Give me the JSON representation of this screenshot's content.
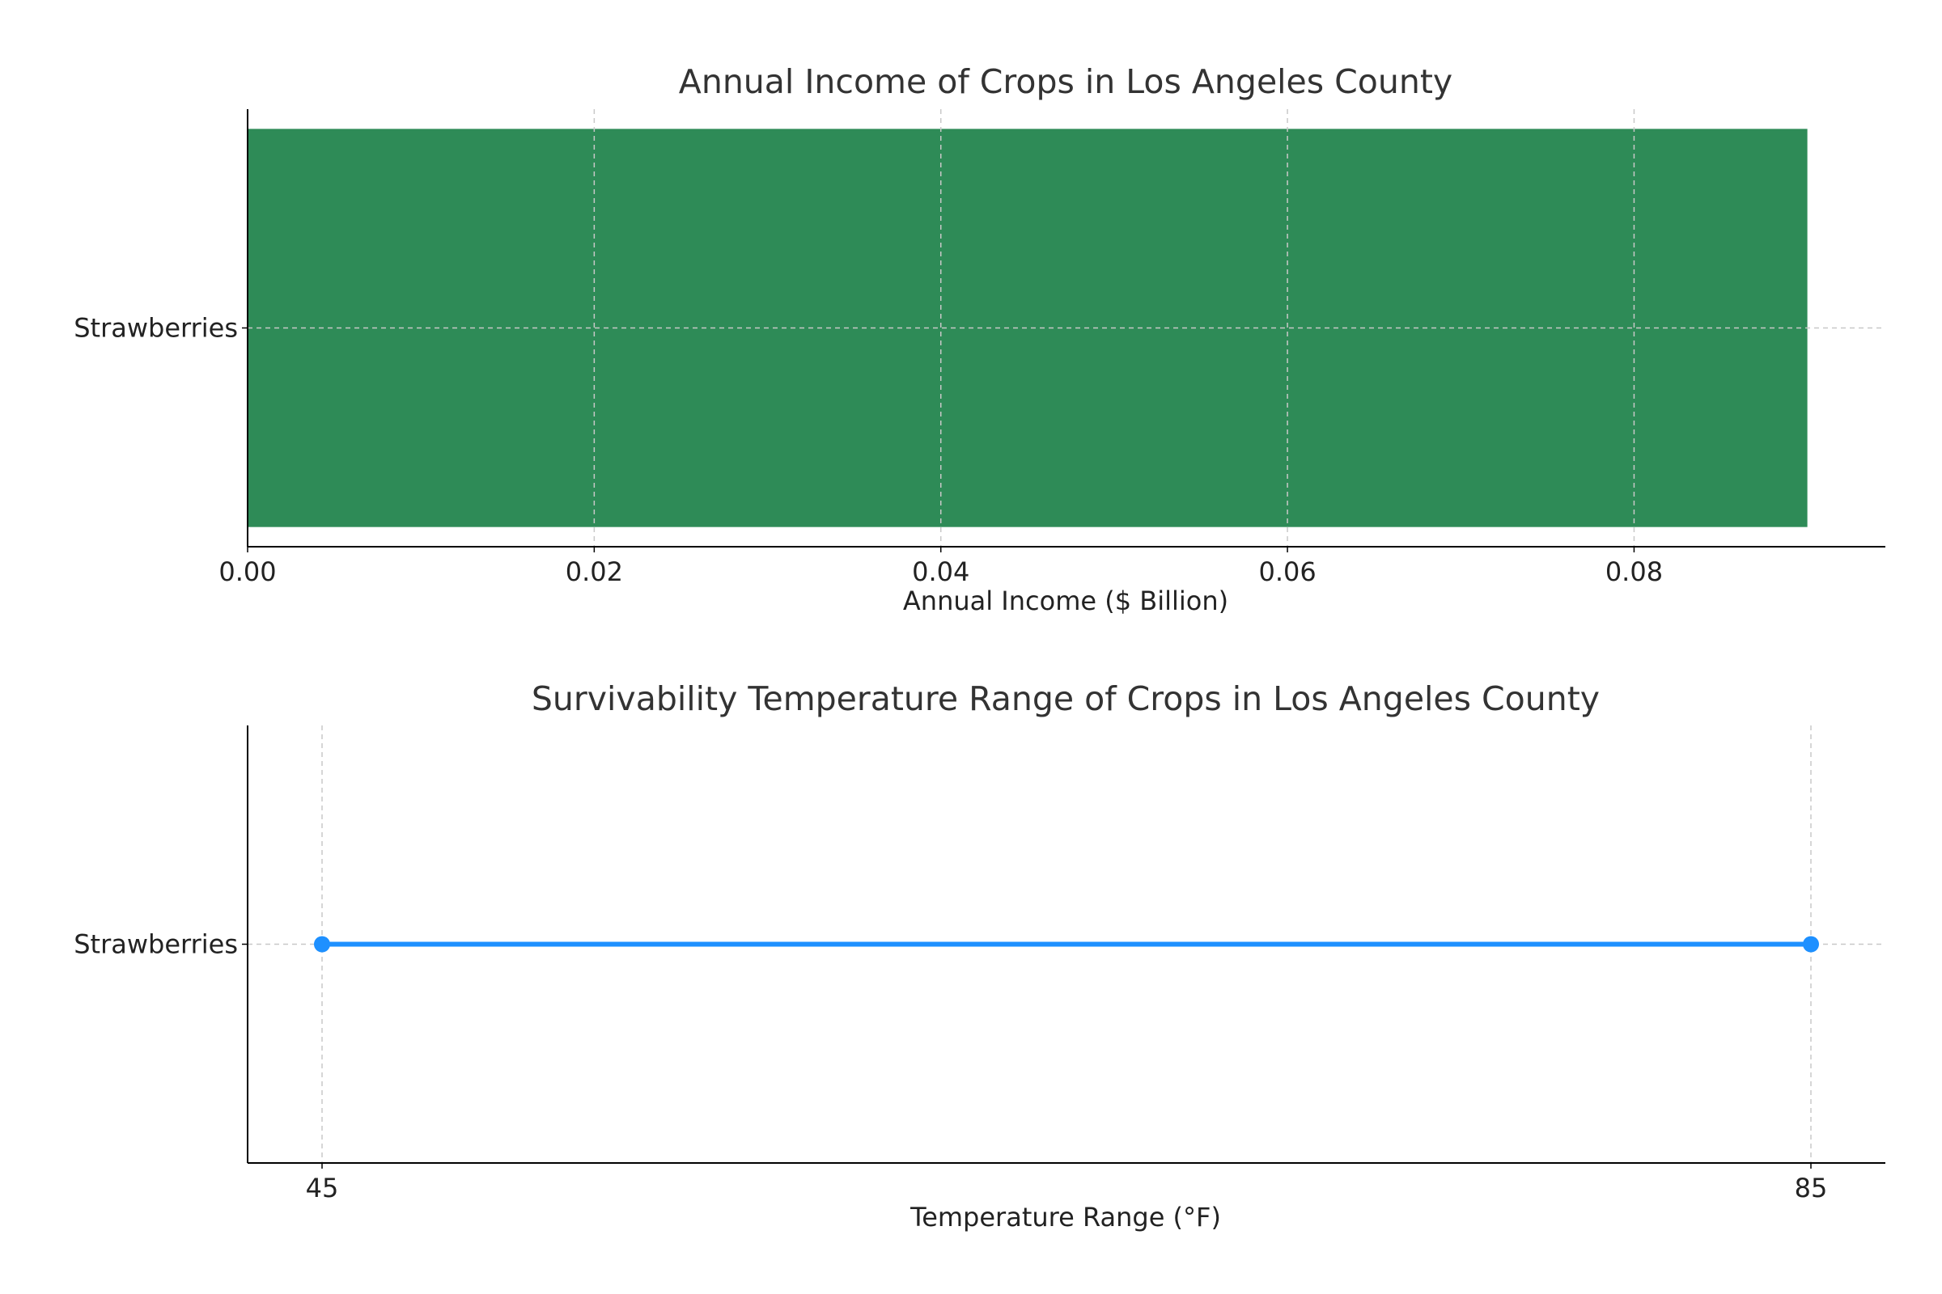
{
  "chart_data": [
    {
      "type": "bar",
      "orientation": "horizontal",
      "title": "Annual Income of Crops in Los Angeles County",
      "xlabel": "Annual Income ($ Billion)",
      "ylabel": "",
      "categories": [
        "Strawberries"
      ],
      "values": [
        0.09
      ],
      "xlim": [
        0,
        0.0945
      ],
      "xticks": [
        0.0,
        0.02,
        0.04,
        0.06,
        0.08
      ],
      "xtick_labels": [
        "0.00",
        "0.02",
        "0.04",
        "0.06",
        "0.08"
      ],
      "grid": true,
      "color": "#2e8b57"
    },
    {
      "type": "line",
      "title": "Survivability Temperature Range of Crops in Los Angeles County",
      "xlabel": "Temperature Range (°F)",
      "ylabel": "",
      "categories": [
        "Strawberries"
      ],
      "series": [
        {
          "category": "Strawberries",
          "x": [
            45,
            85
          ]
        }
      ],
      "xlim": [
        43,
        87
      ],
      "xticks": [
        45,
        85
      ],
      "xtick_labels": [
        "45",
        "85"
      ],
      "grid": true,
      "color": "#1e90ff"
    }
  ]
}
